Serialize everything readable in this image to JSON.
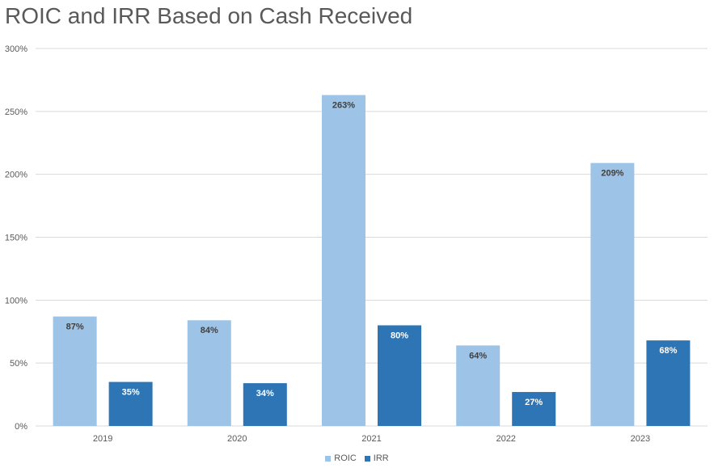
{
  "chart_data": {
    "type": "bar",
    "title": "ROIC and IRR Based on Cash Received",
    "categories": [
      "2019",
      "2020",
      "2021",
      "2022",
      "2023"
    ],
    "series": [
      {
        "name": "ROIC",
        "values": [
          87,
          84,
          263,
          64,
          209
        ],
        "labels": [
          "87%",
          "84%",
          "263%",
          "64%",
          "209%"
        ],
        "color": "#9DC3E6",
        "label_color": "#404040"
      },
      {
        "name": "IRR",
        "values": [
          35,
          34,
          80,
          27,
          68
        ],
        "labels": [
          "35%",
          "34%",
          "80%",
          "27%",
          "68%"
        ],
        "color": "#2E75B6",
        "label_color": "#ffffff"
      }
    ],
    "y_ticks": [
      "0%",
      "50%",
      "100%",
      "150%",
      "200%",
      "250%",
      "300%"
    ],
    "ylim": [
      0,
      300
    ],
    "xlabel": "",
    "ylabel": "",
    "grid": true,
    "gridline_color": "#D9D9D9",
    "legend_position": "bottom"
  }
}
